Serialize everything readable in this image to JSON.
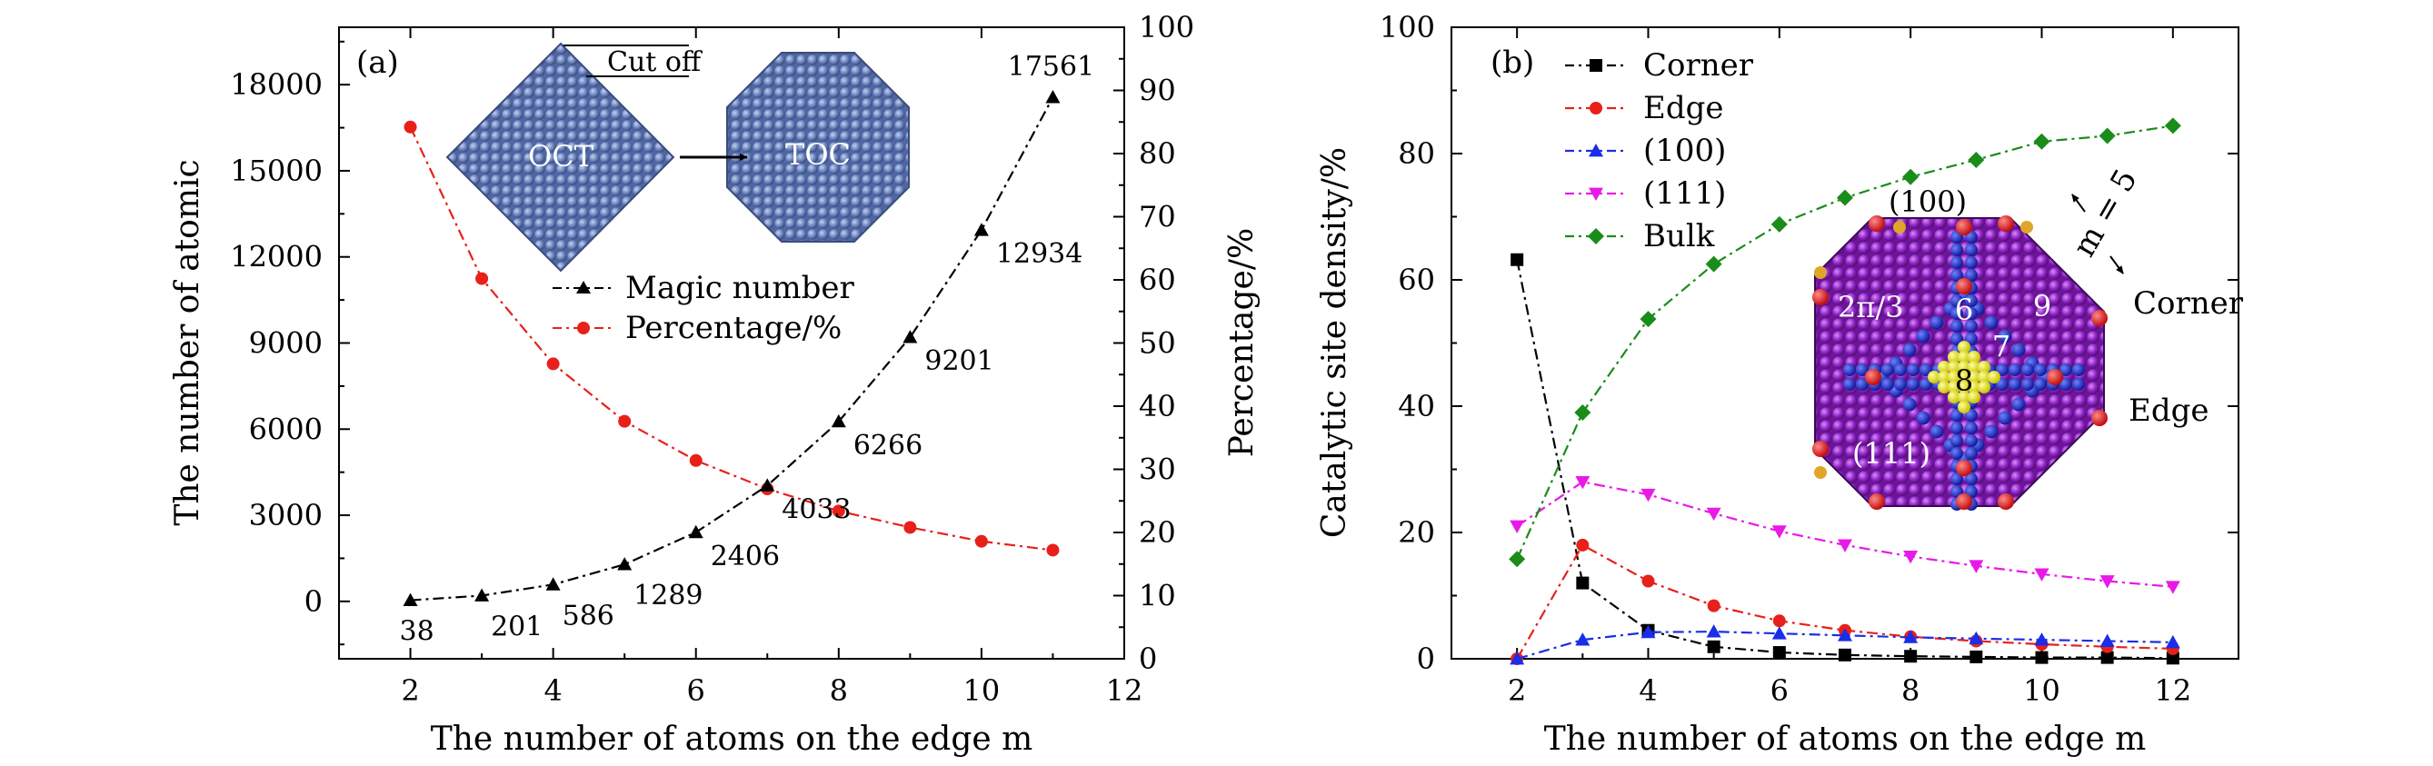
{
  "chart_data": [
    {
      "type": "line",
      "panel_label": "(a)",
      "xlabel": "The number of atoms on the edge m",
      "ylabel_left": "The number of atomic",
      "ylabel_right": "Percentage/%",
      "xlim": [
        1,
        12
      ],
      "ylim_left": [
        -2000,
        20000
      ],
      "ylim_right": [
        0,
        100
      ],
      "xticks": [
        2,
        4,
        6,
        8,
        10,
        12
      ],
      "yticks_left": [
        0,
        3000,
        6000,
        9000,
        12000,
        15000,
        18000
      ],
      "yticks_right": [
        0,
        10,
        20,
        30,
        40,
        50,
        60,
        70,
        80,
        90,
        100
      ],
      "series": [
        {
          "name": "Magic number",
          "axis": "left",
          "color": "#000000",
          "marker": "triangle-up",
          "x": [
            2,
            3,
            4,
            5,
            6,
            7,
            8,
            9,
            10,
            11
          ],
          "values": [
            38,
            201,
            586,
            1289,
            2406,
            4033,
            6266,
            9201,
            12934,
            17561
          ],
          "labels": [
            "38",
            "201",
            "586",
            "1289",
            "2406",
            "4033",
            "6266",
            "9201",
            "12934",
            "17561"
          ]
        },
        {
          "name": "Percentage/%",
          "axis": "right",
          "color": "#e8201a",
          "marker": "circle",
          "x": [
            2,
            3,
            4,
            5,
            6,
            7,
            8,
            9,
            10,
            11
          ],
          "values": [
            84.2,
            60.2,
            46.7,
            37.6,
            31.4,
            26.9,
            23.4,
            20.8,
            18.6,
            17.2
          ]
        }
      ],
      "inset": {
        "left_label": "OCT",
        "right_label": "TOC",
        "cut_label": "Cut off",
        "sphere_color": "#6d86c0"
      }
    },
    {
      "type": "line",
      "panel_label": "(b)",
      "xlabel": "The number of atoms on the edge m",
      "ylabel": "Catalytic site density/%",
      "xlim": [
        1,
        13
      ],
      "ylim": [
        0,
        100
      ],
      "xticks": [
        2,
        4,
        6,
        8,
        10,
        12
      ],
      "yticks": [
        0,
        20,
        40,
        60,
        80,
        100
      ],
      "x": [
        2,
        3,
        4,
        5,
        6,
        7,
        8,
        9,
        10,
        11,
        12
      ],
      "series": [
        {
          "name": "Corner",
          "color": "#000000",
          "marker": "square",
          "values": [
            63.2,
            12.0,
            4.5,
            1.9,
            1.0,
            0.6,
            0.4,
            0.3,
            0.2,
            0.2,
            0.1
          ]
        },
        {
          "name": "Edge",
          "color": "#e8201a",
          "marker": "circle",
          "values": [
            0,
            18.0,
            12.3,
            8.4,
            6.0,
            4.5,
            3.5,
            2.8,
            2.3,
            1.9,
            1.6
          ]
        },
        {
          "name": "(100)",
          "color": "#1a2de8",
          "marker": "triangle-up",
          "values": [
            0,
            3.0,
            4.2,
            4.3,
            4.0,
            3.7,
            3.4,
            3.2,
            3.0,
            2.8,
            2.6
          ]
        },
        {
          "name": "(111)",
          "color": "#e81ae8",
          "marker": "triangle-down",
          "values": [
            21.0,
            28.0,
            26.0,
            23.0,
            20.2,
            18.0,
            16.2,
            14.7,
            13.4,
            12.3,
            11.4
          ]
        },
        {
          "name": "Bulk",
          "color": "#1a8c1a",
          "marker": "diamond",
          "values": [
            15.8,
            39.0,
            53.8,
            62.5,
            68.8,
            73.0,
            76.3,
            79.0,
            81.9,
            82.8,
            84.4
          ]
        }
      ],
      "inset": {
        "labels": [
          "(100)",
          "2π/3",
          "6",
          "7",
          "8",
          "9",
          "(111)",
          "m = 5",
          "Corner",
          "Edge"
        ]
      }
    }
  ]
}
